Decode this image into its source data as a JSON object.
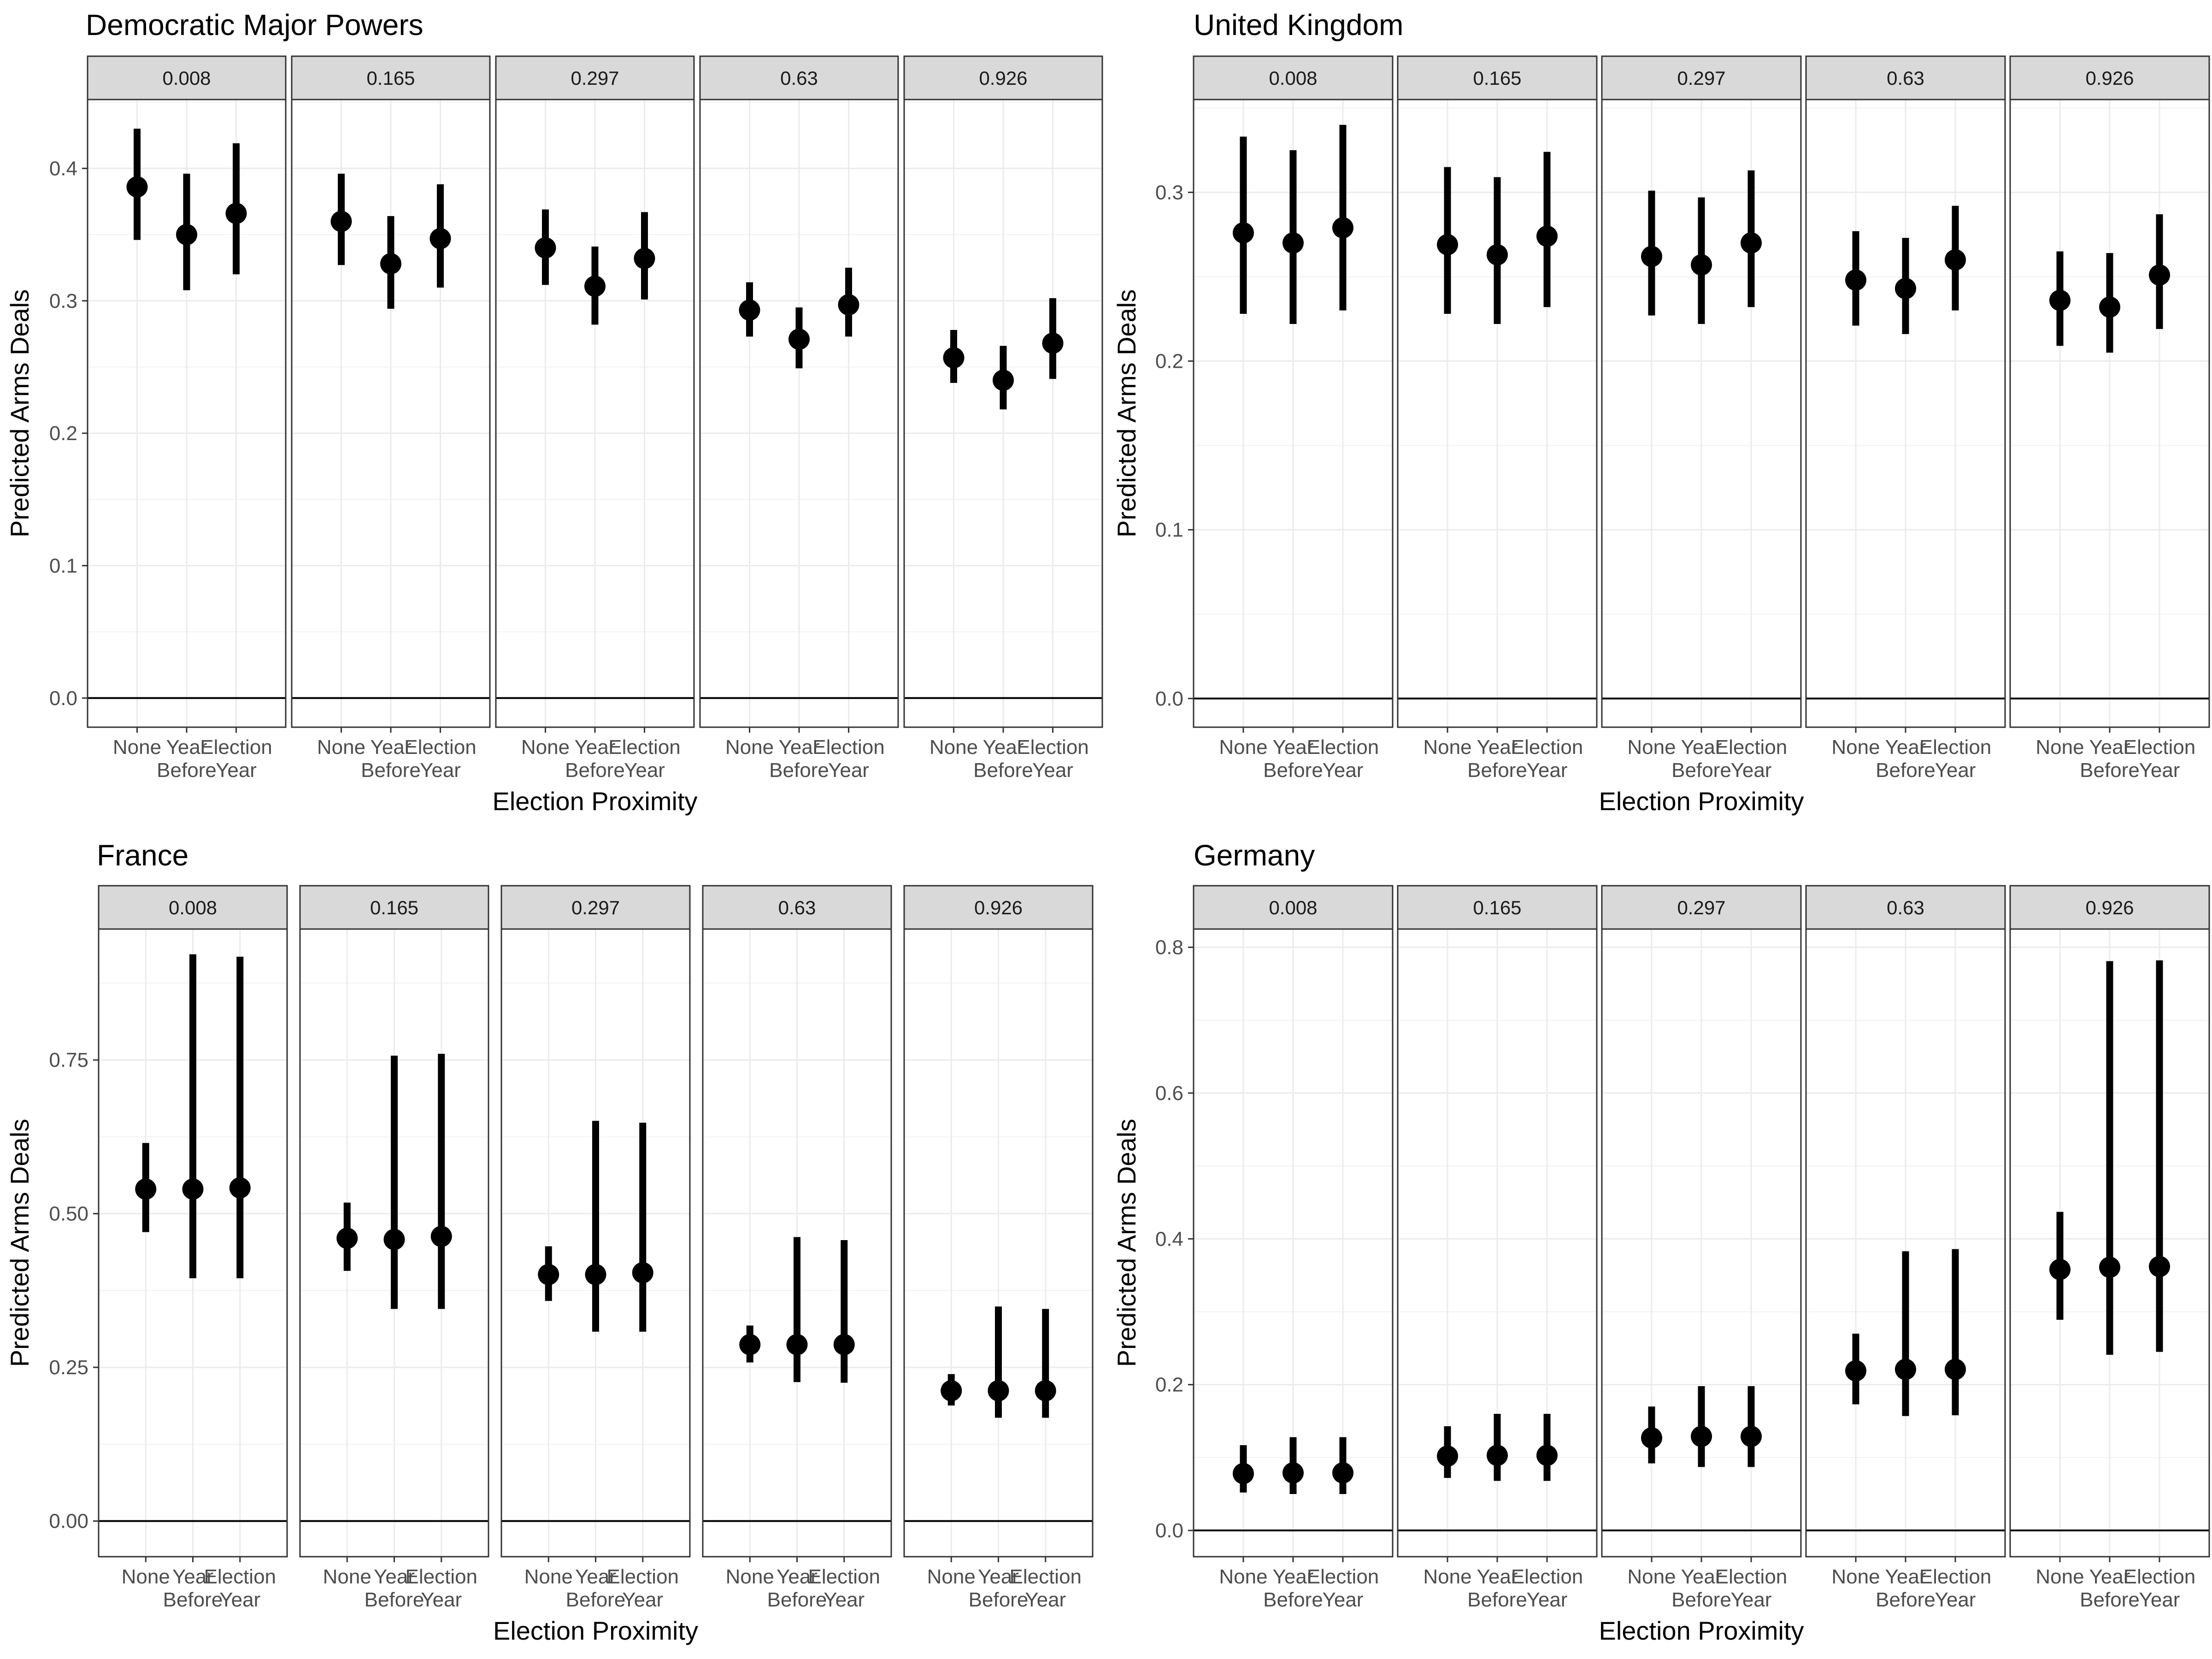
{
  "chart_data": [
    {
      "type": "pointrange",
      "title": "Democratic Major Powers",
      "xlabel": "Election Proximity",
      "ylabel": "Predicted Arms Deals",
      "ylim": [
        -0.022,
        0.452
      ],
      "yticks": [
        0.0,
        0.1,
        0.2,
        0.3,
        0.4
      ],
      "ytick_labels": [
        "0.0",
        "0.1",
        "0.2",
        "0.3",
        "0.4"
      ],
      "categories": [
        "None",
        "Year Before",
        "Election Year"
      ],
      "xtick_labels": [
        [
          "None",
          ""
        ],
        [
          "Year",
          "Before"
        ],
        [
          "Election",
          "Year"
        ]
      ],
      "facets": [
        "0.008",
        "0.165",
        "0.297",
        "0.63",
        "0.926"
      ],
      "hline": 0,
      "grid": true,
      "series": [
        {
          "facet": "0.008",
          "est": [
            0.386,
            0.35,
            0.366
          ],
          "lower": [
            0.346,
            0.308,
            0.32
          ],
          "upper": [
            0.43,
            0.396,
            0.419
          ]
        },
        {
          "facet": "0.165",
          "est": [
            0.36,
            0.328,
            0.347
          ],
          "lower": [
            0.327,
            0.294,
            0.31
          ],
          "upper": [
            0.396,
            0.364,
            0.388
          ]
        },
        {
          "facet": "0.297",
          "est": [
            0.34,
            0.311,
            0.332
          ],
          "lower": [
            0.312,
            0.282,
            0.301
          ],
          "upper": [
            0.369,
            0.341,
            0.367
          ]
        },
        {
          "facet": "0.63",
          "est": [
            0.293,
            0.271,
            0.297
          ],
          "lower": [
            0.273,
            0.249,
            0.273
          ],
          "upper": [
            0.314,
            0.295,
            0.325
          ]
        },
        {
          "facet": "0.926",
          "est": [
            0.257,
            0.24,
            0.268
          ],
          "lower": [
            0.238,
            0.218,
            0.241
          ],
          "upper": [
            0.278,
            0.266,
            0.302
          ]
        }
      ]
    },
    {
      "type": "pointrange",
      "title": "United Kingdom",
      "xlabel": "Election Proximity",
      "ylabel": "Predicted Arms Deals",
      "ylim": [
        -0.017,
        0.355
      ],
      "yticks": [
        0.0,
        0.1,
        0.2,
        0.3
      ],
      "ytick_labels": [
        "0.0",
        "0.1",
        "0.2",
        "0.3"
      ],
      "categories": [
        "None",
        "Year Before",
        "Election Year"
      ],
      "xtick_labels": [
        [
          "None",
          ""
        ],
        [
          "Year",
          "Before"
        ],
        [
          "Election",
          "Year"
        ]
      ],
      "facets": [
        "0.008",
        "0.165",
        "0.297",
        "0.63",
        "0.926"
      ],
      "hline": 0,
      "grid": true,
      "series": [
        {
          "facet": "0.008",
          "est": [
            0.276,
            0.27,
            0.279
          ],
          "lower": [
            0.228,
            0.222,
            0.23
          ],
          "upper": [
            0.333,
            0.325,
            0.34
          ]
        },
        {
          "facet": "0.165",
          "est": [
            0.269,
            0.263,
            0.274
          ],
          "lower": [
            0.228,
            0.222,
            0.232
          ],
          "upper": [
            0.315,
            0.309,
            0.324
          ]
        },
        {
          "facet": "0.297",
          "est": [
            0.262,
            0.257,
            0.27
          ],
          "lower": [
            0.227,
            0.222,
            0.232
          ],
          "upper": [
            0.301,
            0.297,
            0.313
          ]
        },
        {
          "facet": "0.63",
          "est": [
            0.248,
            0.243,
            0.26
          ],
          "lower": [
            0.221,
            0.216,
            0.23
          ],
          "upper": [
            0.277,
            0.273,
            0.292
          ]
        },
        {
          "facet": "0.926",
          "est": [
            0.236,
            0.232,
            0.251
          ],
          "lower": [
            0.209,
            0.205,
            0.219
          ],
          "upper": [
            0.265,
            0.264,
            0.287
          ]
        }
      ]
    },
    {
      "type": "pointrange",
      "title": "France",
      "xlabel": "Election Proximity",
      "ylabel": "Predicted Arms Deals",
      "ylim": [
        -0.058,
        0.963
      ],
      "yticks": [
        0.0,
        0.25,
        0.5,
        0.75
      ],
      "ytick_labels": [
        "0.00",
        "0.25",
        "0.50",
        "0.75"
      ],
      "categories": [
        "None",
        "Year Before",
        "Election Year"
      ],
      "xtick_labels": [
        [
          "None",
          ""
        ],
        [
          "Year",
          "Before"
        ],
        [
          "Election",
          "Year"
        ]
      ],
      "facets": [
        "0.008",
        "0.165",
        "0.297",
        "0.63",
        "0.926"
      ],
      "hline": 0,
      "grid": true,
      "series": [
        {
          "facet": "0.008",
          "est": [
            0.54,
            0.54,
            0.542
          ],
          "lower": [
            0.47,
            0.395,
            0.395
          ],
          "upper": [
            0.615,
            0.922,
            0.918
          ]
        },
        {
          "facet": "0.165",
          "est": [
            0.46,
            0.458,
            0.463
          ],
          "lower": [
            0.407,
            0.345,
            0.345
          ],
          "upper": [
            0.518,
            0.757,
            0.76
          ]
        },
        {
          "facet": "0.297",
          "est": [
            0.401,
            0.401,
            0.404
          ],
          "lower": [
            0.358,
            0.308,
            0.308
          ],
          "upper": [
            0.447,
            0.651,
            0.648
          ]
        },
        {
          "facet": "0.63",
          "est": [
            0.287,
            0.287,
            0.287
          ],
          "lower": [
            0.258,
            0.226,
            0.225
          ],
          "upper": [
            0.318,
            0.462,
            0.457
          ]
        },
        {
          "facet": "0.926",
          "est": [
            0.212,
            0.212,
            0.212
          ],
          "lower": [
            0.188,
            0.168,
            0.168
          ],
          "upper": [
            0.239,
            0.349,
            0.345
          ]
        }
      ]
    },
    {
      "type": "pointrange",
      "title": "Germany",
      "xlabel": "Election Proximity",
      "ylabel": "Predicted Arms Deals",
      "ylim": [
        -0.036,
        0.825
      ],
      "yticks": [
        0.0,
        0.2,
        0.4,
        0.6,
        0.8
      ],
      "ytick_labels": [
        "0.0",
        "0.2",
        "0.4",
        "0.6",
        "0.8"
      ],
      "categories": [
        "None",
        "Year Before",
        "Election Year"
      ],
      "xtick_labels": [
        [
          "None",
          ""
        ],
        [
          "Year",
          "Before"
        ],
        [
          "Election",
          "Year"
        ]
      ],
      "facets": [
        "0.008",
        "0.165",
        "0.297",
        "0.63",
        "0.926"
      ],
      "hline": 0,
      "grid": true,
      "series": [
        {
          "facet": "0.008",
          "est": [
            0.078,
            0.079,
            0.079
          ],
          "lower": [
            0.052,
            0.05,
            0.05
          ],
          "upper": [
            0.117,
            0.128,
            0.128
          ]
        },
        {
          "facet": "0.165",
          "est": [
            0.102,
            0.103,
            0.103
          ],
          "lower": [
            0.072,
            0.068,
            0.068
          ],
          "upper": [
            0.143,
            0.16,
            0.16
          ]
        },
        {
          "facet": "0.297",
          "est": [
            0.127,
            0.129,
            0.129
          ],
          "lower": [
            0.092,
            0.087,
            0.087
          ],
          "upper": [
            0.17,
            0.198,
            0.198
          ]
        },
        {
          "facet": "0.63",
          "est": [
            0.219,
            0.221,
            0.221
          ],
          "lower": [
            0.173,
            0.157,
            0.158
          ],
          "upper": [
            0.27,
            0.383,
            0.386
          ]
        },
        {
          "facet": "0.926",
          "est": [
            0.358,
            0.361,
            0.362
          ],
          "lower": [
            0.289,
            0.241,
            0.245
          ],
          "upper": [
            0.437,
            0.781,
            0.782
          ]
        }
      ]
    }
  ]
}
